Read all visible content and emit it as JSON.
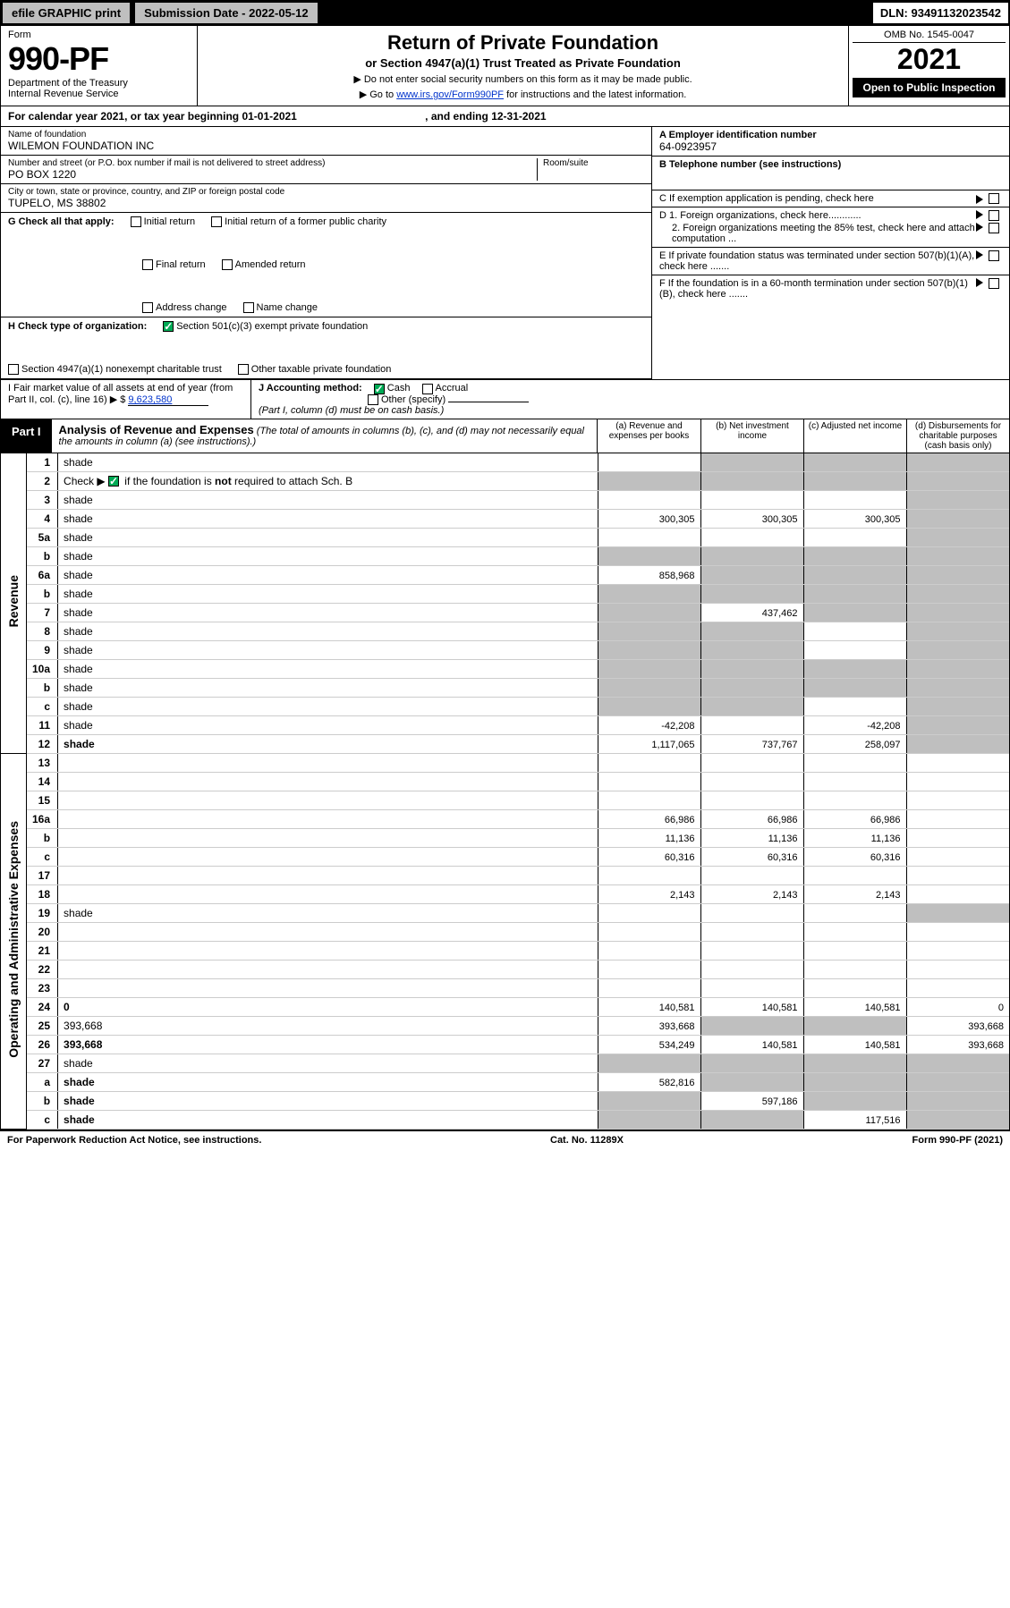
{
  "top_bar": {
    "efile": "efile GRAPHIC print",
    "sub_label": "Submission Date - 2022-05-12",
    "dln": "DLN: 93491132023542"
  },
  "header": {
    "form_word": "Form",
    "form_no": "990-PF",
    "dept": "Department of the Treasury",
    "irs": "Internal Revenue Service",
    "title": "Return of Private Foundation",
    "subtitle": "or Section 4947(a)(1) Trust Treated as Private Foundation",
    "note1": "▶ Do not enter social security numbers on this form as it may be made public.",
    "note2_pre": "▶ Go to ",
    "note2_link": "www.irs.gov/Form990PF",
    "note2_post": " for instructions and the latest information.",
    "omb": "OMB No. 1545-0047",
    "year": "2021",
    "open": "Open to Public Inspection"
  },
  "calendar": {
    "text_pre": "For calendar year 2021, or tax year beginning ",
    "begin": "01-01-2021",
    "mid": " , and ending ",
    "end": "12-31-2021"
  },
  "org": {
    "name_lbl": "Name of foundation",
    "name": "WILEMON FOUNDATION INC",
    "addr_lbl": "Number and street (or P.O. box number if mail is not delivered to street address)",
    "addr": "PO BOX 1220",
    "room_lbl": "Room/suite",
    "city_lbl": "City or town, state or province, country, and ZIP or foreign postal code",
    "city": "TUPELO, MS  38802",
    "a_lbl": "A Employer identification number",
    "ein": "64-0923957",
    "b_lbl": "B Telephone number (see instructions)",
    "c_lbl": "C If exemption application is pending, check here",
    "d1": "D 1. Foreign organizations, check here............",
    "d2": "2. Foreign organizations meeting the 85% test, check here and attach computation ...",
    "e_lbl": "E If private foundation status was terminated under section 507(b)(1)(A), check here .......",
    "f_lbl": "F If the foundation is in a 60-month termination under section 507(b)(1)(B), check here ......."
  },
  "check_g": {
    "lbl": "G Check all that apply:",
    "opts": [
      "Initial return",
      "Final return",
      "Address change",
      "Initial return of a former public charity",
      "Amended return",
      "Name change"
    ]
  },
  "check_h": {
    "lbl": "H Check type of organization:",
    "opt1": "Section 501(c)(3) exempt private foundation",
    "opt2": "Section 4947(a)(1) nonexempt charitable trust",
    "opt3": "Other taxable private foundation"
  },
  "i": {
    "lbl": "I Fair market value of all assets at end of year (from Part II, col. (c), line 16) ▶ $",
    "val": "9,623,580"
  },
  "j": {
    "lbl": "J Accounting method:",
    "cash": "Cash",
    "accrual": "Accrual",
    "other": "Other (specify)",
    "note": "(Part I, column (d) must be on cash basis.)"
  },
  "part1": {
    "tag": "Part I",
    "title": "Analysis of Revenue and Expenses",
    "note": "(The total of amounts in columns (b), (c), and (d) may not necessarily equal the amounts in column (a) (see instructions).)",
    "cols": {
      "a": "(a) Revenue and expenses per books",
      "b": "(b) Net investment income",
      "c": "(c) Adjusted net income",
      "d": "(d) Disbursements for charitable purposes (cash basis only)"
    }
  },
  "side_labels": {
    "revenue": "Revenue",
    "opex": "Operating and Administrative Expenses"
  },
  "rows": [
    {
      "n": "1",
      "d": "shade",
      "a": "",
      "b": "shade",
      "c": "shade"
    },
    {
      "n": "2",
      "d": "shade",
      "a": "shade",
      "b": "shade",
      "c": "shade",
      "checked": true
    },
    {
      "n": "3",
      "d": "shade",
      "a": "",
      "b": "",
      "c": ""
    },
    {
      "n": "4",
      "d": "shade",
      "a": "300,305",
      "b": "300,305",
      "c": "300,305"
    },
    {
      "n": "5a",
      "d": "shade",
      "a": "",
      "b": "",
      "c": ""
    },
    {
      "n": "b",
      "d": "shade",
      "a": "shade",
      "b": "shade",
      "c": "shade"
    },
    {
      "n": "6a",
      "d": "shade",
      "a": "858,968",
      "b": "shade",
      "c": "shade"
    },
    {
      "n": "b",
      "d": "shade",
      "a": "shade",
      "b": "shade",
      "c": "shade"
    },
    {
      "n": "7",
      "d": "shade",
      "a": "shade",
      "b": "437,462",
      "c": "shade"
    },
    {
      "n": "8",
      "d": "shade",
      "a": "shade",
      "b": "shade",
      "c": ""
    },
    {
      "n": "9",
      "d": "shade",
      "a": "shade",
      "b": "shade",
      "c": ""
    },
    {
      "n": "10a",
      "d": "shade",
      "a": "shade",
      "b": "shade",
      "c": "shade"
    },
    {
      "n": "b",
      "d": "shade",
      "a": "shade",
      "b": "shade",
      "c": "shade"
    },
    {
      "n": "c",
      "d": "shade",
      "a": "shade",
      "b": "shade",
      "c": ""
    },
    {
      "n": "11",
      "d": "shade",
      "a": "-42,208",
      "b": "",
      "c": "-42,208"
    },
    {
      "n": "12",
      "d": "shade",
      "a": "1,117,065",
      "b": "737,767",
      "c": "258,097",
      "bold": true
    },
    {
      "n": "13",
      "d": "",
      "a": "",
      "b": "",
      "c": ""
    },
    {
      "n": "14",
      "d": "",
      "a": "",
      "b": "",
      "c": ""
    },
    {
      "n": "15",
      "d": "",
      "a": "",
      "b": "",
      "c": ""
    },
    {
      "n": "16a",
      "d": "",
      "a": "66,986",
      "b": "66,986",
      "c": "66,986"
    },
    {
      "n": "b",
      "d": "",
      "a": "11,136",
      "b": "11,136",
      "c": "11,136"
    },
    {
      "n": "c",
      "d": "",
      "a": "60,316",
      "b": "60,316",
      "c": "60,316"
    },
    {
      "n": "17",
      "d": "",
      "a": "",
      "b": "",
      "c": ""
    },
    {
      "n": "18",
      "d": "",
      "a": "2,143",
      "b": "2,143",
      "c": "2,143"
    },
    {
      "n": "19",
      "d": "shade",
      "a": "",
      "b": "",
      "c": ""
    },
    {
      "n": "20",
      "d": "",
      "a": "",
      "b": "",
      "c": ""
    },
    {
      "n": "21",
      "d": "",
      "a": "",
      "b": "",
      "c": ""
    },
    {
      "n": "22",
      "d": "",
      "a": "",
      "b": "",
      "c": ""
    },
    {
      "n": "23",
      "d": "",
      "a": "",
      "b": "",
      "c": ""
    },
    {
      "n": "24",
      "d": "0",
      "a": "140,581",
      "b": "140,581",
      "c": "140,581",
      "bold": true
    },
    {
      "n": "25",
      "d": "393,668",
      "a": "393,668",
      "b": "shade",
      "c": "shade"
    },
    {
      "n": "26",
      "d": "393,668",
      "a": "534,249",
      "b": "140,581",
      "c": "140,581",
      "bold": true
    },
    {
      "n": "27",
      "d": "shade",
      "a": "shade",
      "b": "shade",
      "c": "shade"
    },
    {
      "n": "a",
      "d": "shade",
      "a": "582,816",
      "b": "shade",
      "c": "shade",
      "bold": true
    },
    {
      "n": "b",
      "d": "shade",
      "a": "shade",
      "b": "597,186",
      "c": "shade",
      "bold": true
    },
    {
      "n": "c",
      "d": "shade",
      "a": "shade",
      "b": "shade",
      "c": "117,516",
      "bold": true
    }
  ],
  "footer": {
    "left": "For Paperwork Reduction Act Notice, see instructions.",
    "mid": "Cat. No. 11289X",
    "right": "Form 990-PF (2021)"
  },
  "colors": {
    "black": "#000000",
    "gray": "#bfbfbf",
    "link": "#0033cc",
    "check_green": "#00aa55"
  }
}
